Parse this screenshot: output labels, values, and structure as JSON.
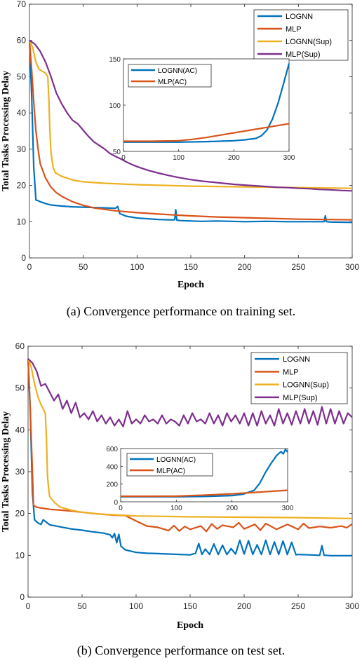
{
  "chart_data": [
    {
      "type": "line",
      "caption": "(a)  Convergence performance on training set.",
      "xlabel": "Epoch",
      "ylabel": "Total Tasks Processing Delay",
      "xlim": [
        0,
        300
      ],
      "ylim": [
        0,
        70
      ],
      "xticks": [
        "0",
        "50",
        "100",
        "150",
        "200",
        "250",
        "300"
      ],
      "yticks": [
        "0",
        "10",
        "20",
        "30",
        "40",
        "50",
        "60",
        "70"
      ],
      "legend_position": "top-right",
      "series": [
        {
          "name": "LOGNN",
          "color": "#0072BD",
          "x": [
            0,
            2,
            4,
            6,
            8,
            10,
            15,
            20,
            30,
            40,
            50,
            60,
            70,
            80,
            82,
            83,
            84,
            90,
            100,
            110,
            120,
            130,
            135,
            136,
            137,
            140,
            150,
            160,
            175,
            200,
            220,
            240,
            260,
            274,
            275,
            276,
            280,
            300
          ],
          "y": [
            60,
            45,
            25,
            16,
            15.8,
            15.5,
            15,
            14.6,
            14.3,
            14.1,
            14,
            13.9,
            13.8,
            13.7,
            14.2,
            13.2,
            12.2,
            11.5,
            11,
            10.8,
            10.6,
            10.5,
            10.5,
            13.3,
            10.4,
            10.3,
            10.2,
            10.1,
            10.2,
            10,
            10.1,
            10,
            10,
            10,
            11.6,
            10,
            9.9,
            9.8
          ]
        },
        {
          "name": "MLP",
          "color": "#D95319",
          "x": [
            0,
            2,
            4,
            6,
            8,
            10,
            15,
            20,
            25,
            30,
            40,
            50,
            60,
            80,
            100,
            125,
            150,
            175,
            200,
            225,
            250,
            275,
            300
          ],
          "y": [
            60,
            52,
            43,
            35,
            30,
            26,
            22,
            19.5,
            18,
            17,
            15.5,
            14.5,
            13.8,
            13,
            12.5,
            12,
            11.6,
            11.3,
            11.1,
            10.9,
            10.7,
            10.6,
            10.5
          ]
        },
        {
          "name": "LOGNN(Sup)",
          "color": "#EDB120",
          "x": [
            0,
            3,
            6,
            9,
            12,
            15,
            17,
            18,
            19,
            20,
            22,
            24,
            27,
            30,
            40,
            50,
            70,
            100,
            150,
            200,
            250,
            300
          ],
          "y": [
            60,
            58,
            54,
            52,
            51.5,
            51,
            50,
            44,
            35,
            29,
            25,
            23.5,
            23,
            22.5,
            21.5,
            21,
            20.6,
            20.2,
            19.8,
            19.6,
            19.4,
            19.2
          ]
        },
        {
          "name": "MLP(Sup)",
          "color": "#7E2F8E",
          "x": [
            0,
            5,
            10,
            15,
            20,
            25,
            30,
            35,
            40,
            45,
            50,
            55,
            60,
            65,
            70,
            75,
            80,
            85,
            90,
            95,
            100,
            110,
            120,
            130,
            140,
            150,
            160,
            170,
            180,
            190,
            200,
            210,
            220,
            230,
            240,
            250,
            260,
            270,
            280,
            290,
            300
          ],
          "y": [
            60,
            59,
            57,
            54,
            50,
            45.5,
            42.5,
            40,
            38,
            37,
            35.2,
            33.5,
            32,
            31,
            30,
            28.8,
            28,
            27.3,
            26.5,
            25.8,
            25.2,
            24.2,
            23.4,
            22.7,
            22.1,
            21.6,
            21.2,
            20.9,
            20.6,
            20.3,
            20.1,
            19.9,
            19.7,
            19.5,
            19.4,
            19.2,
            19.1,
            18.9,
            18.8,
            18.6,
            18.5
          ]
        }
      ],
      "inset": {
        "xlim": [
          0,
          300
        ],
        "ylim": [
          50,
          150
        ],
        "xticks": [
          "0",
          "100",
          "200",
          "300"
        ],
        "yticks": [
          "50",
          "100",
          "150"
        ],
        "series": [
          {
            "name": "LOGNN(AC)",
            "color": "#0072BD",
            "x": [
              0,
              50,
              100,
              150,
              200,
              220,
              240,
              250,
              260,
              270,
              280,
              290,
              300
            ],
            "y": [
              60,
              60,
              60,
              60.5,
              61.5,
              62.5,
              64,
              67,
              73,
              85,
              102,
              123,
              145
            ]
          },
          {
            "name": "MLP(AC)",
            "color": "#D95319",
            "x": [
              0,
              50,
              100,
              125,
              150,
              200,
              250,
              300
            ],
            "y": [
              61,
              61,
              61.5,
              63,
              65,
              70,
              75,
              80
            ]
          }
        ]
      }
    },
    {
      "type": "line",
      "caption": "(b)  Convergence performance on test set.",
      "xlabel": "Epoch",
      "ylabel": "Total Tasks Processing Delay",
      "xlim": [
        0,
        300
      ],
      "ylim": [
        0,
        60
      ],
      "xticks": [
        "0",
        "50",
        "100",
        "150",
        "200",
        "250",
        "300"
      ],
      "yticks": [
        "0",
        "10",
        "20",
        "30",
        "40",
        "50",
        "60"
      ],
      "legend_position": "top-right",
      "series": [
        {
          "name": "LOGNN",
          "color": "#0072BD",
          "x": [
            0,
            2,
            4,
            6,
            8,
            10,
            12,
            14,
            20,
            30,
            40,
            50,
            60,
            70,
            76,
            78,
            80,
            82,
            84,
            86,
            90,
            100,
            110,
            120,
            130,
            140,
            150,
            155,
            158,
            161,
            164,
            168,
            172,
            176,
            180,
            184,
            188,
            192,
            196,
            200,
            204,
            208,
            212,
            216,
            220,
            224,
            228,
            232,
            236,
            240,
            244,
            248,
            250,
            260,
            270,
            272,
            274,
            276,
            280,
            290,
            300
          ],
          "y": [
            57,
            45,
            25,
            18.5,
            18,
            17.6,
            17.4,
            18.5,
            17.3,
            16.8,
            16.3,
            16,
            15.6,
            15.3,
            14.9,
            14.2,
            15.2,
            13,
            15,
            12.2,
            11.3,
            10.7,
            10.5,
            10.4,
            10.3,
            10.2,
            10.1,
            10.5,
            12.8,
            10.2,
            11.5,
            10.2,
            12.7,
            10.2,
            12.4,
            10.2,
            11.6,
            10.3,
            13.6,
            10.3,
            13.5,
            10.2,
            12.5,
            10.2,
            13.6,
            10.2,
            13.2,
            10.2,
            13.4,
            10.2,
            13.1,
            10.1,
            10.2,
            10.1,
            10,
            12.3,
            10,
            10,
            9.9,
            9.9,
            9.9
          ]
        },
        {
          "name": "MLP",
          "color": "#D95319",
          "x": [
            0,
            2,
            4,
            5,
            6,
            8,
            10,
            15,
            20,
            30,
            40,
            50,
            60,
            70,
            80,
            90,
            100,
            110,
            120,
            130,
            135,
            140,
            145,
            150,
            160,
            165,
            170,
            175,
            180,
            190,
            195,
            200,
            210,
            215,
            220,
            230,
            240,
            250,
            255,
            260,
            270,
            280,
            290,
            295,
            300
          ],
          "y": [
            57,
            45,
            30,
            22,
            21.8,
            21.5,
            21.4,
            21.2,
            21,
            20.8,
            20.6,
            20.3,
            20,
            19.8,
            19.6,
            19.5,
            18.2,
            17,
            16.7,
            15.9,
            17.1,
            15.8,
            16.9,
            16.2,
            17,
            15.7,
            17.5,
            16.3,
            17.2,
            16.7,
            17.8,
            16.3,
            17.4,
            16,
            17.6,
            16.2,
            17.4,
            16.2,
            17.6,
            16.5,
            16.9,
            16.6,
            17,
            16.6,
            17.5
          ]
        },
        {
          "name": "LOGNN(Sup)",
          "color": "#EDB120",
          "x": [
            0,
            3,
            6,
            9,
            12,
            14,
            16,
            17,
            18,
            19,
            20,
            25,
            30,
            40,
            50,
            70,
            100,
            150,
            200,
            250,
            300
          ],
          "y": [
            57,
            55,
            51,
            48,
            46,
            45,
            44,
            38,
            29,
            26,
            24,
            22.5,
            21.5,
            20.8,
            20.3,
            19.8,
            19.4,
            19.2,
            19.1,
            19,
            18.8
          ]
        },
        {
          "name": "MLP(Sup)",
          "color": "#7E2F8E",
          "x": [
            0,
            4,
            8,
            12,
            16,
            20,
            24,
            28,
            32,
            36,
            40,
            44,
            48,
            52,
            56,
            60,
            64,
            68,
            72,
            76,
            80,
            84,
            88,
            92,
            96,
            100,
            104,
            108,
            112,
            116,
            120,
            124,
            128,
            132,
            136,
            140,
            144,
            148,
            152,
            156,
            160,
            164,
            168,
            172,
            176,
            180,
            184,
            188,
            192,
            196,
            200,
            204,
            208,
            212,
            216,
            220,
            224,
            228,
            232,
            236,
            240,
            244,
            248,
            252,
            256,
            260,
            264,
            268,
            272,
            276,
            280,
            284,
            288,
            292,
            296,
            300
          ],
          "y": [
            57,
            56,
            54,
            50.5,
            51,
            49,
            47,
            48.5,
            45,
            47,
            44,
            46.5,
            43,
            44,
            42.5,
            44.5,
            42,
            43.5,
            41.5,
            43,
            41,
            42.5,
            40.8,
            44.5,
            41.5,
            42.5,
            41.5,
            43.5,
            42,
            42.5,
            41.5,
            43.5,
            41.5,
            42.5,
            42,
            41,
            43.5,
            41.5,
            44,
            42,
            42.5,
            41.5,
            44,
            41.5,
            43.5,
            41,
            44,
            42,
            43.5,
            41.5,
            44,
            41,
            44,
            41,
            44.5,
            41.5,
            43.5,
            41,
            45,
            41.5,
            44,
            41.2,
            44.5,
            41.5,
            45,
            41.5,
            44.5,
            41.2,
            45.5,
            41.5,
            45,
            41.5,
            44.5,
            41.5,
            44,
            43
          ]
        }
      ],
      "inset": {
        "xlim": [
          0,
          300
        ],
        "ylim": [
          0,
          600
        ],
        "xticks": [
          "0",
          "100",
          "200",
          "300"
        ],
        "yticks": [
          "0",
          "200",
          "400",
          "600"
        ],
        "series": [
          {
            "name": "LOGNN(AC)",
            "color": "#0072BD",
            "x": [
              0,
              50,
              100,
              150,
              200,
              220,
              240,
              250,
              260,
              270,
              280,
              288,
              292,
              296,
              300
            ],
            "y": [
              57,
              57,
              57,
              60,
              70,
              85,
              130,
              210,
              330,
              430,
              520,
              565,
              540,
              590,
              560
            ]
          },
          {
            "name": "MLP(AC)",
            "color": "#D95319",
            "x": [
              0,
              50,
              100,
              150,
              200,
              250,
              300
            ],
            "y": [
              62,
              62,
              64,
              75,
              90,
              110,
              130
            ]
          }
        ]
      }
    }
  ]
}
